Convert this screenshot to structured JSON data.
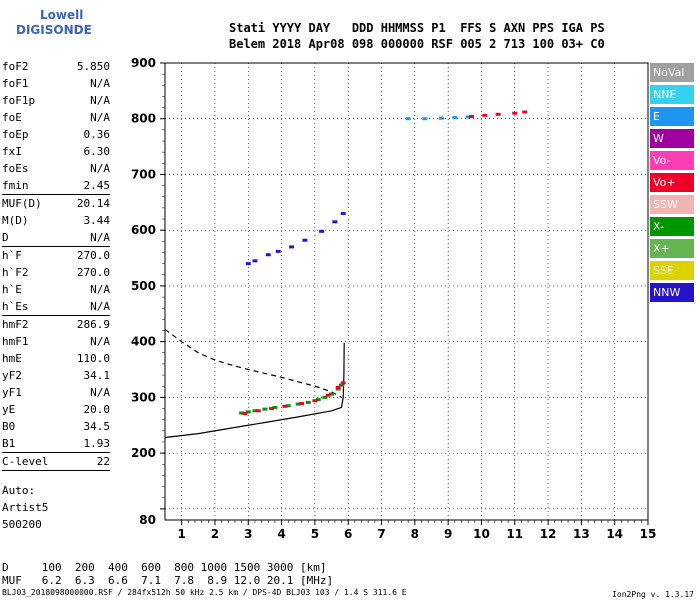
{
  "logo": {
    "line1": "Lowell",
    "line2": "DIGISONDE"
  },
  "header": {
    "row1": "Stati YYYY DAY   DDD HHMMSS P1  FFS S AXN PPS IGA PS",
    "row2": "Belem 2018 Apr08 098 000000 RSF 005 2 713 100 03+ C0"
  },
  "params": [
    {
      "label": "foF2",
      "value": "5.850"
    },
    {
      "label": "foF1",
      "value": "N/A"
    },
    {
      "label": "foF1p",
      "value": "N/A"
    },
    {
      "label": "foE",
      "value": "N/A"
    },
    {
      "label": "foEp",
      "value": "0.36"
    },
    {
      "label": "fxI",
      "value": "6.30"
    },
    {
      "label": "foEs",
      "value": "N/A"
    },
    {
      "label": "fmin",
      "value": "2.45"
    },
    {
      "sep": true
    },
    {
      "label": "MUF(D)",
      "value": "20.14"
    },
    {
      "label": "M(D)",
      "value": "3.44"
    },
    {
      "label": "D",
      "value": "N/A"
    },
    {
      "sep": true
    },
    {
      "label": "h`F",
      "value": "270.0"
    },
    {
      "label": "h`F2",
      "value": "270.0"
    },
    {
      "label": "h`E",
      "value": "N/A"
    },
    {
      "label": "h`Es",
      "value": "N/A"
    },
    {
      "sep": true
    },
    {
      "label": "hmF2",
      "value": "286.9"
    },
    {
      "label": "hmF1",
      "value": "N/A"
    },
    {
      "label": "hmE",
      "value": "110.0"
    },
    {
      "label": "yF2",
      "value": "34.1"
    },
    {
      "label": "yF1",
      "value": "N/A"
    },
    {
      "label": "yE",
      "value": "20.0"
    },
    {
      "label": "B0",
      "value": "34.5"
    },
    {
      "label": "B1",
      "value": "1.93"
    },
    {
      "sep": true
    },
    {
      "label": "C-level",
      "value": "22"
    },
    {
      "sep": true
    }
  ],
  "auto": {
    "line1": "Auto:",
    "line2": "Artist5",
    "line3": "500200"
  },
  "legend": [
    {
      "label": "NoVal",
      "color": "#a0a0a0"
    },
    {
      "label": "NNE",
      "color": "#34d2f0"
    },
    {
      "label": "E",
      "color": "#1e96f0"
    },
    {
      "label": "W",
      "color": "#a000a0"
    },
    {
      "label": "Vo-",
      "color": "#ff3cb4"
    },
    {
      "label": "Vo+",
      "color": "#f00028"
    },
    {
      "label": "SSW",
      "color": "#f0b4b4"
    },
    {
      "label": "X-",
      "color": "#009600"
    },
    {
      "label": "X+",
      "color": "#64b450"
    },
    {
      "label": "SSE",
      "color": "#dcd200"
    },
    {
      "label": "NNW",
      "color": "#2814c8"
    }
  ],
  "dmuf": {
    "d_row": "D     100  200  400  600  800 1000 1500 3000 [km]",
    "muf_row": "MUF   6.2  6.3  6.6  7.1  7.8  8.9 12.0 20.1 [MHz]"
  },
  "footer": "BLJ03_2018098000000.RSF / 284fx512h 50 kHz 2.5 km / DPS-4D BLJ03 103 / 1.4 S 311.6 E",
  "version": "Ion2Png v. 1.3.17",
  "chart_data": {
    "type": "scatter",
    "title": "",
    "xlabel": "",
    "ylabel": "",
    "xlim": [
      0.5,
      15
    ],
    "ylim": [
      80,
      900
    ],
    "x_ticks": [
      1,
      2,
      3,
      4,
      5,
      6,
      7,
      8,
      9,
      10,
      11,
      12,
      13,
      14,
      15
    ],
    "y_ticks": [
      100,
      200,
      300,
      400,
      500,
      600,
      700,
      800,
      900
    ],
    "y_tick_labels": [
      "",
      "200",
      "300",
      "400",
      "500",
      "600",
      "700",
      "800",
      "900"
    ],
    "y_bottom_label": "80",
    "grid": true,
    "legend_position": "right",
    "series": [
      {
        "color_key": "X-",
        "points": [
          [
            2.8,
            272
          ],
          [
            3.0,
            274
          ],
          [
            3.2,
            276
          ],
          [
            3.5,
            279
          ],
          [
            3.8,
            282
          ],
          [
            4.2,
            285
          ],
          [
            4.5,
            288
          ],
          [
            4.8,
            291
          ],
          [
            5.1,
            296
          ],
          [
            5.3,
            300
          ],
          [
            5.5,
            306
          ],
          [
            5.7,
            315
          ],
          [
            5.8,
            322
          ]
        ]
      },
      {
        "color_key": "Vo+",
        "points": [
          [
            2.9,
            271
          ],
          [
            3.3,
            276
          ],
          [
            3.7,
            280
          ],
          [
            4.1,
            284
          ],
          [
            4.6,
            289
          ],
          [
            5.0,
            294
          ],
          [
            5.4,
            304
          ],
          [
            5.7,
            318
          ],
          [
            5.85,
            326
          ]
        ]
      },
      {
        "color_key": "NNW",
        "points": [
          [
            3.0,
            540
          ],
          [
            3.2,
            545
          ],
          [
            3.6,
            556
          ],
          [
            3.9,
            562
          ],
          [
            4.3,
            570
          ],
          [
            4.7,
            582
          ],
          [
            5.2,
            598
          ],
          [
            5.6,
            615
          ],
          [
            5.85,
            630
          ]
        ]
      },
      {
        "color_key": "E",
        "points": [
          [
            7.8,
            800
          ],
          [
            8.3,
            800
          ],
          [
            8.8,
            801
          ],
          [
            9.2,
            802
          ],
          [
            9.6,
            803
          ]
        ]
      },
      {
        "color_key": "Vo+",
        "points": [
          [
            9.7,
            804
          ],
          [
            10.1,
            806
          ],
          [
            10.5,
            808
          ],
          [
            11.0,
            810
          ],
          [
            11.3,
            812
          ]
        ]
      }
    ],
    "lines": [
      {
        "name": "",
        "style": "solid",
        "points": [
          [
            0.5,
            228
          ],
          [
            1.5,
            235
          ],
          [
            2.5,
            245
          ],
          [
            3.5,
            255
          ],
          [
            4.5,
            265
          ],
          [
            5.5,
            276
          ],
          [
            5.8,
            282
          ],
          [
            5.85,
            300
          ],
          [
            5.87,
            340
          ],
          [
            5.88,
            398
          ]
        ]
      },
      {
        "name": "",
        "style": "dashed",
        "points": [
          [
            0.5,
            422
          ],
          [
            1.0,
            400
          ],
          [
            1.5,
            380
          ],
          [
            2.0,
            367
          ],
          [
            2.5,
            358
          ],
          [
            3.0,
            350
          ],
          [
            3.5,
            343
          ],
          [
            4.0,
            336
          ],
          [
            4.5,
            328
          ],
          [
            5.0,
            320
          ],
          [
            5.5,
            310
          ],
          [
            5.8,
            300
          ]
        ]
      }
    ]
  }
}
